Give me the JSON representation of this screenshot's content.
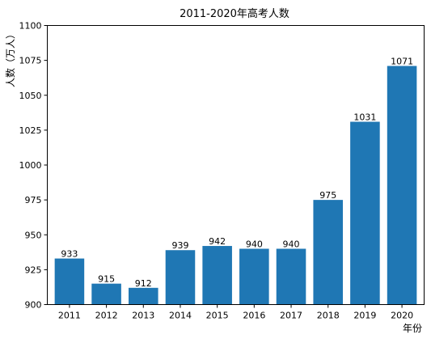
{
  "chart_data": {
    "type": "bar",
    "title": "2011-2020年高考人数",
    "xlabel": "年份",
    "ylabel": "人数（万人）",
    "categories": [
      "2011",
      "2012",
      "2013",
      "2014",
      "2015",
      "2016",
      "2017",
      "2018",
      "2019",
      "2020"
    ],
    "values": [
      933,
      915,
      912,
      939,
      942,
      940,
      940,
      975,
      1031,
      1071
    ],
    "ylim": [
      900,
      1100
    ],
    "yticks": [
      900,
      925,
      950,
      975,
      1000,
      1025,
      1050,
      1075,
      1100
    ],
    "grid": false,
    "legend": "none",
    "bar_color": "#1f77b4",
    "data_labels": true
  }
}
